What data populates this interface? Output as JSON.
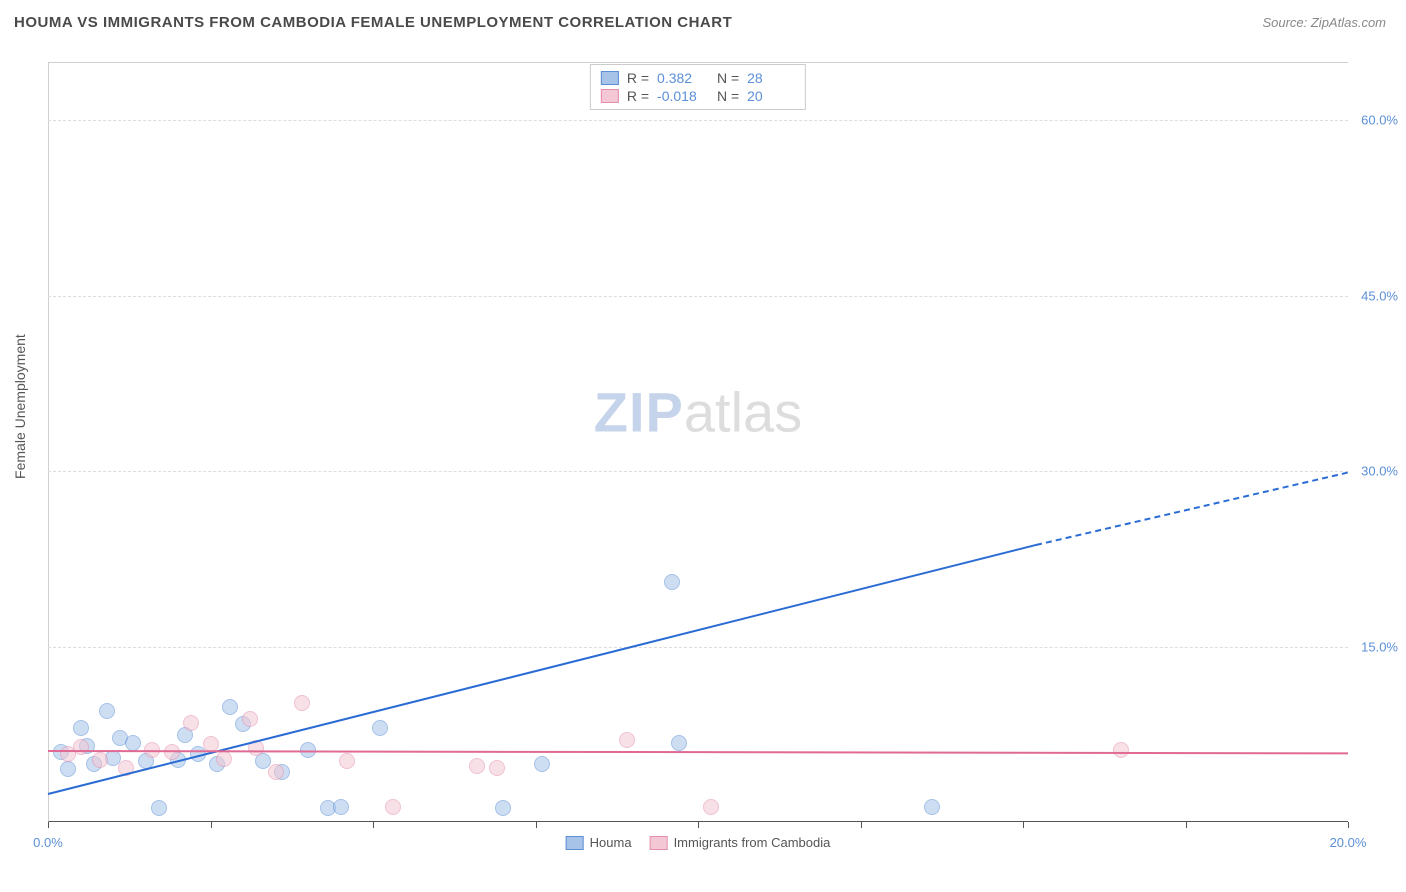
{
  "header": {
    "title": "HOUMA VS IMMIGRANTS FROM CAMBODIA FEMALE UNEMPLOYMENT CORRELATION CHART",
    "source": "Source: ZipAtlas.com"
  },
  "chart": {
    "type": "scatter",
    "yaxis_title": "Female Unemployment",
    "background_color": "#ffffff",
    "grid_color": "#dddddd",
    "border_color": "#d0d0d0",
    "axis_color": "#555555",
    "xlim": [
      0,
      20
    ],
    "ylim": [
      0,
      65
    ],
    "xticks": [
      0,
      2.5,
      5,
      7.5,
      10,
      12.5,
      15,
      17.5,
      20
    ],
    "xtick_labels": {
      "0": "0.0%",
      "20": "20.0%"
    },
    "yticks": [
      15,
      30,
      45,
      60
    ],
    "ytick_labels": [
      "15.0%",
      "30.0%",
      "45.0%",
      "60.0%"
    ],
    "marker_radius": 8,
    "marker_opacity": 0.55,
    "watermark": {
      "zip": "ZIP",
      "atlas": "atlas"
    },
    "series": [
      {
        "name": "Houma",
        "fill_color": "#a7c4e8",
        "stroke_color": "#5b8fd6",
        "line_color": "#2b6cd4",
        "R": "0.382",
        "N": "28",
        "trend": {
          "x1": 0,
          "y1": 2.5,
          "x2": 15.2,
          "y2": 23.8,
          "dash_from_x": 15.2,
          "x3": 20,
          "y3": 30
        },
        "points": [
          {
            "x": 0.2,
            "y": 6.0
          },
          {
            "x": 0.3,
            "y": 4.5
          },
          {
            "x": 0.5,
            "y": 8.0
          },
          {
            "x": 0.6,
            "y": 6.5
          },
          {
            "x": 0.7,
            "y": 5.0
          },
          {
            "x": 0.9,
            "y": 9.5
          },
          {
            "x": 1.0,
            "y": 5.5
          },
          {
            "x": 1.1,
            "y": 7.2
          },
          {
            "x": 1.3,
            "y": 6.8
          },
          {
            "x": 1.5,
            "y": 5.2
          },
          {
            "x": 1.7,
            "y": 1.2
          },
          {
            "x": 2.0,
            "y": 5.3
          },
          {
            "x": 2.1,
            "y": 7.4
          },
          {
            "x": 2.3,
            "y": 5.8
          },
          {
            "x": 2.6,
            "y": 5.0
          },
          {
            "x": 2.8,
            "y": 9.8
          },
          {
            "x": 3.0,
            "y": 8.4
          },
          {
            "x": 3.3,
            "y": 5.2
          },
          {
            "x": 3.6,
            "y": 4.3
          },
          {
            "x": 4.0,
            "y": 6.2
          },
          {
            "x": 4.3,
            "y": 1.2
          },
          {
            "x": 4.5,
            "y": 1.3
          },
          {
            "x": 5.1,
            "y": 8.0
          },
          {
            "x": 7.0,
            "y": 1.2
          },
          {
            "x": 7.6,
            "y": 5.0
          },
          {
            "x": 9.6,
            "y": 20.5
          },
          {
            "x": 9.7,
            "y": 6.8
          },
          {
            "x": 13.6,
            "y": 1.3
          }
        ]
      },
      {
        "name": "Immigrants from Cambodia",
        "fill_color": "#f3c8d4",
        "stroke_color": "#e48fae",
        "line_color": "#e06a94",
        "R": "-0.018",
        "N": "20",
        "trend": {
          "x1": 0,
          "y1": 6.2,
          "x2": 20,
          "y2": 6.0
        },
        "points": [
          {
            "x": 0.3,
            "y": 5.8
          },
          {
            "x": 0.5,
            "y": 6.4
          },
          {
            "x": 0.8,
            "y": 5.3
          },
          {
            "x": 1.2,
            "y": 4.6
          },
          {
            "x": 1.6,
            "y": 6.2
          },
          {
            "x": 1.9,
            "y": 6.0
          },
          {
            "x": 2.2,
            "y": 8.5
          },
          {
            "x": 2.5,
            "y": 6.7
          },
          {
            "x": 2.7,
            "y": 5.4
          },
          {
            "x": 3.1,
            "y": 8.8
          },
          {
            "x": 3.2,
            "y": 6.3
          },
          {
            "x": 3.5,
            "y": 4.3
          },
          {
            "x": 3.9,
            "y": 10.2
          },
          {
            "x": 4.6,
            "y": 5.2
          },
          {
            "x": 5.3,
            "y": 1.3
          },
          {
            "x": 6.6,
            "y": 4.8
          },
          {
            "x": 6.9,
            "y": 4.6
          },
          {
            "x": 8.9,
            "y": 7.0
          },
          {
            "x": 10.2,
            "y": 1.3
          },
          {
            "x": 16.5,
            "y": 6.2
          }
        ]
      }
    ],
    "legend": [
      {
        "label": "Houma",
        "fill": "#a7c4e8",
        "stroke": "#5b8fd6"
      },
      {
        "label": "Immigrants from Cambodia",
        "fill": "#f3c8d4",
        "stroke": "#e48fae"
      }
    ]
  }
}
